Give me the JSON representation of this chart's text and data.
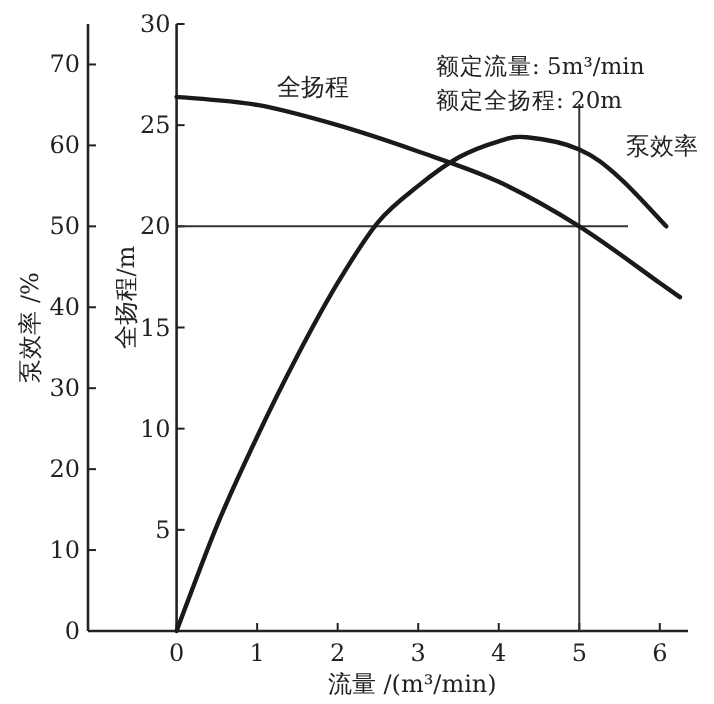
{
  "chart_data": {
    "type": "line",
    "xlabel": "流量 /(m³/min)",
    "ylabel": "泵效率 /%",
    "y2label": "全扬程/m",
    "xlim": [
      -1.1,
      6.35
    ],
    "xticks": [
      0,
      1,
      2,
      3,
      4,
      5,
      6
    ],
    "ylim": [
      0,
      75
    ],
    "yticks": [
      0,
      10,
      20,
      30,
      40,
      50,
      60,
      70
    ],
    "y2lim": [
      0,
      30
    ],
    "y2ticks": [
      5,
      10,
      15,
      20,
      25,
      30
    ],
    "marker": "none",
    "line_style": "solid",
    "grid": false,
    "series": [
      {
        "name": "全扬程",
        "axis": "y2",
        "color": "#1a1a1a",
        "x": [
          0,
          1,
          2,
          3,
          4,
          5,
          6,
          6.25
        ],
        "values": [
          26.4,
          26.0,
          25.0,
          23.7,
          22.2,
          20.0,
          17.2,
          16.5
        ]
      },
      {
        "name": "泵效率",
        "axis": "y",
        "color": "#1a1a1a",
        "x": [
          0,
          0.5,
          1,
          1.5,
          2,
          2.5,
          3,
          3.5,
          4,
          4.35,
          5,
          5.5,
          6.08
        ],
        "values": [
          0,
          13,
          24,
          34,
          43,
          50.5,
          55,
          58.5,
          60.5,
          61,
          59.5,
          56,
          50
        ]
      }
    ],
    "ref_lines": [
      {
        "axis": "y2",
        "value": 20,
        "color": "#333333"
      },
      {
        "axis": "x",
        "value": 5,
        "color": "#333333"
      }
    ],
    "annotations": [
      "额定流量: 5m³/min",
      "额定全扬程: 20m"
    ]
  }
}
